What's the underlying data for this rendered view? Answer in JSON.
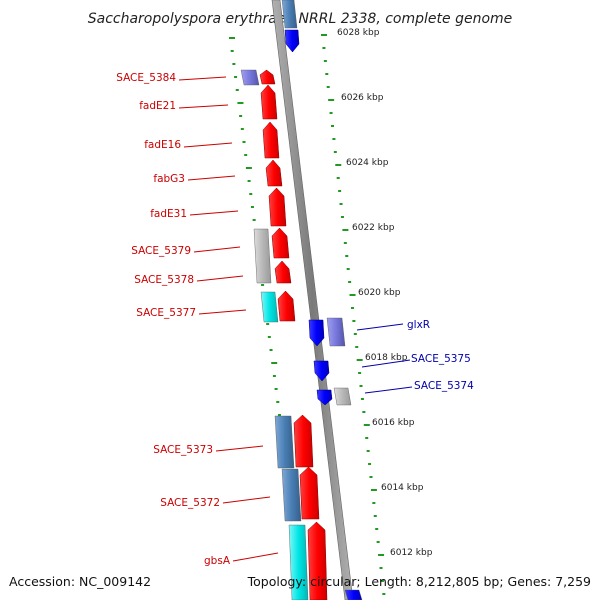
{
  "title": "Saccharopolyspora erythraea NRRL 2338, complete genome",
  "footer": {
    "accession": "Accession: NC_009142",
    "summary": "Topology: circular; Length: 8,212,805 bp; Genes: 7,259"
  },
  "ruler_labels": [
    "6028 kbp",
    "6026 kbp",
    "6024 kbp",
    "6022 kbp",
    "6020 kbp",
    "6018 kbp",
    "6016 kbp",
    "6014 kbp",
    "6012 kbp"
  ],
  "left_gene_labels": [
    "SACE_5384",
    "fadE21",
    "fadE16",
    "fabG3",
    "fadE31",
    "SACE_5379",
    "SACE_5378",
    "SACE_5377",
    "SACE_5373",
    "SACE_5372",
    "gbsA"
  ],
  "right_gene_labels": [
    "glxR",
    "SACE_5375",
    "SACE_5374"
  ],
  "colors": {
    "forward_strand": "#ff0000",
    "reverse_strand": "#0000ff",
    "left_label": "#cc0000",
    "right_label": "#0000aa",
    "backbone": "#888888",
    "tick": "#229922",
    "cyan_feature": "#00e5e5",
    "steel_blue_feature": "#4a7fb5",
    "slate_feature": "#7777dd",
    "grey_feature": "#b8b8b8"
  },
  "icons": [
    "forward-gene-arrow",
    "reverse-gene-arrow"
  ]
}
